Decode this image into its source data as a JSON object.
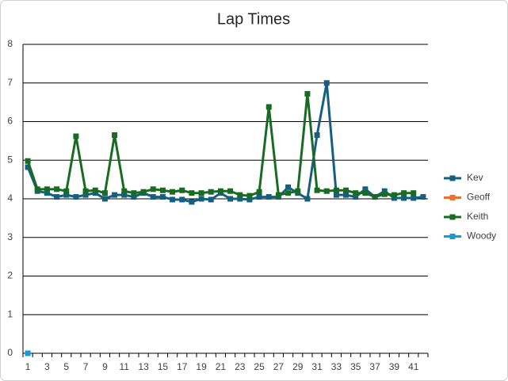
{
  "chart_data": {
    "type": "line",
    "title": "Lap Times",
    "categories": [
      1,
      null,
      3,
      null,
      5,
      null,
      7,
      null,
      9,
      null,
      11,
      null,
      13,
      null,
      15,
      null,
      17,
      null,
      19,
      null,
      21,
      null,
      23,
      null,
      25,
      null,
      27,
      null,
      29,
      null,
      31,
      null,
      33,
      null,
      35,
      null,
      37,
      null,
      39,
      null,
      41,
      null
    ],
    "ylim": [
      0,
      8
    ],
    "yticks": [
      0,
      1,
      2,
      3,
      4,
      5,
      6,
      7,
      8
    ],
    "grid": true,
    "legend": "right",
    "series": [
      {
        "name": "Kev",
        "color": "#156082",
        "values": [
          4.82,
          4.2,
          4.15,
          4.05,
          4.1,
          4.05,
          4.1,
          4.15,
          4.0,
          4.1,
          4.1,
          4.05,
          4.15,
          4.05,
          4.05,
          3.98,
          3.98,
          3.92,
          4.0,
          3.98,
          4.15,
          4.0,
          4.0,
          3.98,
          4.05,
          4.05,
          4.05,
          4.3,
          4.15,
          4.0,
          5.65,
          7.0,
          4.1,
          4.1,
          4.05,
          4.25,
          4.05,
          4.2,
          4.02,
          4.02,
          4.02,
          4.05
        ]
      },
      {
        "name": "Geoff",
        "color": "#e97132",
        "values": [
          null,
          null,
          null,
          null,
          null,
          null,
          null,
          null,
          null,
          null,
          null,
          null,
          null,
          null,
          null,
          null,
          null,
          null,
          null,
          null,
          null,
          null,
          null,
          null,
          null,
          null,
          null,
          null,
          null,
          null,
          null,
          null,
          null,
          null,
          null,
          null,
          null,
          null,
          null,
          null,
          null,
          null
        ]
      },
      {
        "name": "Keith",
        "color": "#196b24",
        "values": [
          4.98,
          4.25,
          4.25,
          4.25,
          4.2,
          5.62,
          4.2,
          4.22,
          4.15,
          5.65,
          4.2,
          4.15,
          4.18,
          4.25,
          4.22,
          4.18,
          4.22,
          4.15,
          4.15,
          4.18,
          4.2,
          4.2,
          4.1,
          4.08,
          4.18,
          6.38,
          4.1,
          4.15,
          4.2,
          6.72,
          4.22,
          4.2,
          4.22,
          4.22,
          4.15,
          4.15,
          4.05,
          4.12,
          4.1,
          4.15,
          4.15,
          null
        ]
      },
      {
        "name": "Woody",
        "color": "#0f9ed5",
        "values": [
          0,
          null,
          null,
          null,
          null,
          null,
          null,
          null,
          null,
          null,
          null,
          null,
          null,
          null,
          null,
          null,
          null,
          null,
          null,
          null,
          null,
          null,
          null,
          null,
          null,
          null,
          null,
          null,
          null,
          null,
          null,
          null,
          null,
          null,
          null,
          null,
          null,
          null,
          null,
          null,
          null,
          null
        ]
      }
    ]
  }
}
